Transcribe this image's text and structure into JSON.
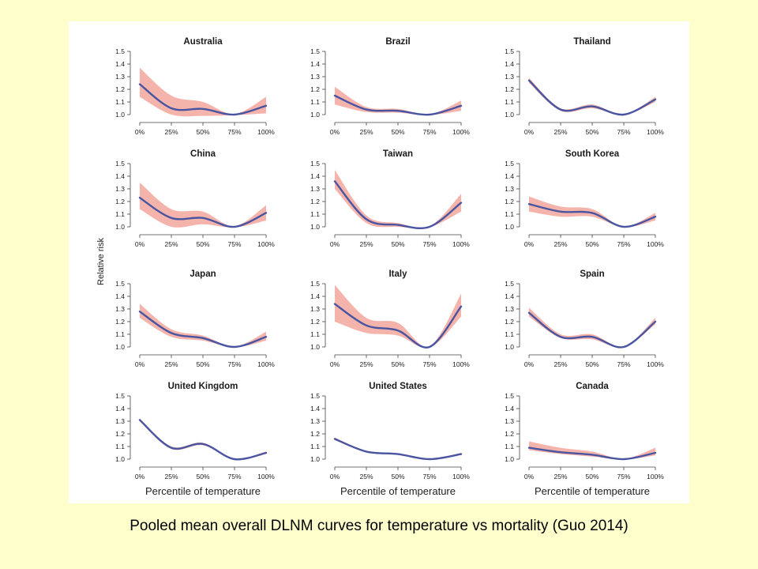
{
  "caption": "Pooled mean overall DLNM curves for temperature vs mortality (Guo 2014)",
  "colors": {
    "page_background": "#ffffcc",
    "panel_background": "#ffffff",
    "curve": "#4a55a2",
    "confidence_band": "#f3a79c",
    "axis": "#444444"
  },
  "chart_data": {
    "type": "line",
    "layout": "small multiples, 4 rows x 3 columns",
    "ylabel": "Relative risk",
    "xlabel": "Percentile of temperature",
    "x_ticks": [
      "0%",
      "25%",
      "50%",
      "75%",
      "100%"
    ],
    "y_ticks": [
      "1.0",
      "1.1",
      "1.2",
      "1.3",
      "1.4",
      "1.5"
    ],
    "x_range": [
      0,
      100
    ],
    "y_range": [
      1.0,
      1.5
    ],
    "grid": false,
    "legend": "none",
    "x": [
      0,
      25,
      50,
      75,
      100
    ],
    "panels": [
      {
        "title": "Australia",
        "mean": [
          1.24,
          1.05,
          1.045,
          1.0,
          1.07
        ],
        "lower": [
          1.14,
          1.0,
          0.99,
          0.995,
          1.01
        ],
        "upper": [
          1.37,
          1.15,
          1.1,
          1.005,
          1.14
        ]
      },
      {
        "title": "Brazil",
        "mean": [
          1.15,
          1.04,
          1.03,
          1.0,
          1.07
        ],
        "lower": [
          1.08,
          1.02,
          1.015,
          0.997,
          1.03
        ],
        "upper": [
          1.22,
          1.06,
          1.045,
          1.003,
          1.11
        ]
      },
      {
        "title": "Thailand",
        "mean": [
          1.27,
          1.04,
          1.065,
          1.0,
          1.12
        ],
        "lower": [
          1.25,
          1.03,
          1.05,
          0.997,
          1.1
        ],
        "upper": [
          1.29,
          1.05,
          1.08,
          1.003,
          1.14
        ]
      },
      {
        "title": "China",
        "mean": [
          1.23,
          1.07,
          1.07,
          1.0,
          1.11
        ],
        "lower": [
          1.14,
          1.0,
          1.02,
          0.995,
          1.05
        ],
        "upper": [
          1.35,
          1.14,
          1.12,
          1.005,
          1.17
        ]
      },
      {
        "title": "Taiwan",
        "mean": [
          1.36,
          1.06,
          1.015,
          1.0,
          1.19
        ],
        "lower": [
          1.3,
          1.03,
          1.0,
          0.997,
          1.12
        ],
        "upper": [
          1.45,
          1.09,
          1.03,
          1.003,
          1.26
        ]
      },
      {
        "title": "South Korea",
        "mean": [
          1.18,
          1.12,
          1.11,
          1.0,
          1.08
        ],
        "lower": [
          1.12,
          1.08,
          1.08,
          0.997,
          1.05
        ],
        "upper": [
          1.24,
          1.16,
          1.14,
          1.003,
          1.11
        ]
      },
      {
        "title": "Japan",
        "mean": [
          1.28,
          1.11,
          1.07,
          1.0,
          1.08
        ],
        "lower": [
          1.23,
          1.08,
          1.05,
          0.997,
          1.05
        ],
        "upper": [
          1.34,
          1.14,
          1.09,
          1.003,
          1.12
        ]
      },
      {
        "title": "Italy",
        "mean": [
          1.34,
          1.17,
          1.13,
          1.0,
          1.32
        ],
        "lower": [
          1.2,
          1.11,
          1.09,
          0.995,
          1.24
        ],
        "upper": [
          1.49,
          1.23,
          1.19,
          1.005,
          1.42
        ]
      },
      {
        "title": "Spain",
        "mean": [
          1.27,
          1.08,
          1.08,
          1.0,
          1.2
        ],
        "lower": [
          1.24,
          1.07,
          1.06,
          0.997,
          1.18
        ],
        "upper": [
          1.31,
          1.1,
          1.1,
          1.003,
          1.23
        ]
      },
      {
        "title": "United Kingdom",
        "mean": [
          1.31,
          1.09,
          1.12,
          1.0,
          1.05
        ],
        "lower": [
          1.3,
          1.08,
          1.11,
          0.998,
          1.04
        ],
        "upper": [
          1.32,
          1.1,
          1.13,
          1.002,
          1.06
        ]
      },
      {
        "title": "United States",
        "mean": [
          1.16,
          1.06,
          1.04,
          1.0,
          1.04
        ],
        "lower": [
          1.15,
          1.055,
          1.035,
          0.998,
          1.035
        ],
        "upper": [
          1.17,
          1.065,
          1.045,
          1.002,
          1.05
        ]
      },
      {
        "title": "Canada",
        "mean": [
          1.09,
          1.055,
          1.035,
          1.0,
          1.05
        ],
        "lower": [
          1.07,
          1.04,
          1.02,
          0.997,
          1.03
        ],
        "upper": [
          1.14,
          1.09,
          1.06,
          1.003,
          1.09
        ]
      }
    ]
  }
}
